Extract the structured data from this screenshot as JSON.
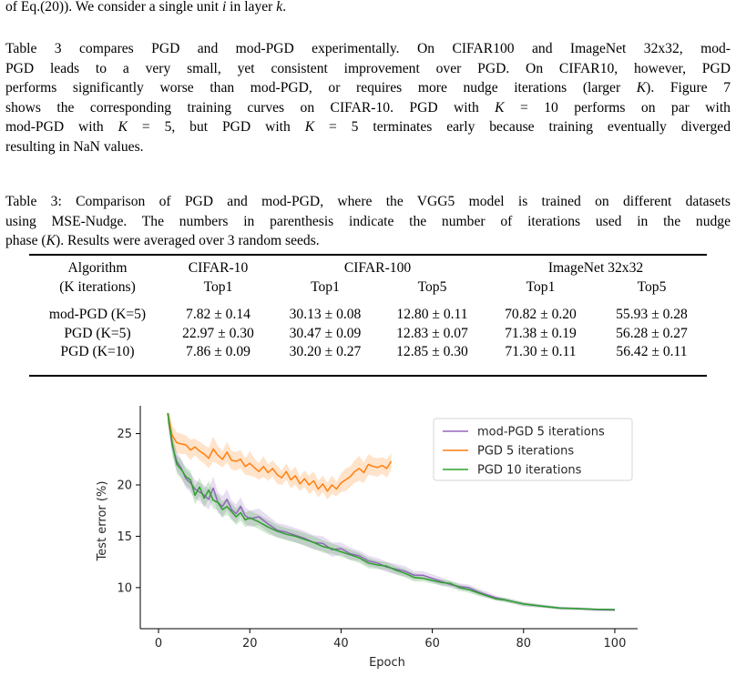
{
  "paper": {
    "intro_lines": [
      "of Eq.(20)). We consider a single unit i in layer k."
    ],
    "para1_lines": [
      "Table 3 compares PGD and mod-PGD experimentally. On CIFAR100 and ImageNet 32x32, mod-",
      "PGD leads to a very small, yet consistent improvement over PGD. On CIFAR10, however, PGD",
      "performs significantly worse than mod-PGD, or requires more nudge iterations (larger K). Figure 7",
      "shows the corresponding training curves on CIFAR-10. PGD with K = 10 performs on par with",
      "mod-PGD with K = 5, but PGD with K = 5 terminates early because training eventually diverged",
      "resulting in NaN values."
    ],
    "caption_lines": [
      "Table 3: Comparison of PGD and mod-PGD, where the VGG5 model is trained on different datasets",
      "using MSE-Nudge. The numbers in parenthesis indicate the number of iterations used in the nudge",
      "phase (K). Results were averaged over 3 random seeds."
    ]
  },
  "table": {
    "header1": [
      "Algorithm",
      "CIFAR-10",
      "CIFAR-100",
      "ImageNet 32x32"
    ],
    "header2": [
      "(K iterations)",
      "Top1",
      "Top1",
      "Top5",
      "Top1",
      "Top5"
    ],
    "rows": [
      [
        "mod-PGD (K=5)",
        "7.82 ± 0.14",
        "30.13 ± 0.08",
        "12.80 ± 0.11",
        "70.82 ± 0.20",
        "55.93 ± 0.28"
      ],
      [
        "PGD (K=5)",
        "22.97 ± 0.30",
        "30.47 ± 0.09",
        "12.83 ± 0.07",
        "71.38 ± 0.19",
        "56.28 ± 0.27"
      ],
      [
        "PGD (K=10)",
        "7.86 ± 0.09",
        "30.20 ± 0.27",
        "12.85 ± 0.30",
        "71.30 ± 0.11",
        "56.42 ± 0.11"
      ]
    ]
  },
  "chart_data": {
    "type": "line",
    "xlabel": "Epoch",
    "ylabel": "Test error (%)",
    "xlim": [
      -4,
      105
    ],
    "ylim": [
      6,
      27
    ],
    "xticks": [
      0,
      20,
      40,
      60,
      80,
      100
    ],
    "yticks": [
      10,
      15,
      20,
      25
    ],
    "legend": "top-right",
    "grid": false,
    "series": [
      {
        "name": "mod-PGD 5 iterations",
        "color": "#9467bd",
        "x": [
          2,
          3,
          4,
          5,
          6,
          7,
          8,
          9,
          10,
          11,
          12,
          13,
          14,
          15,
          16,
          17,
          18,
          19,
          20,
          22,
          24,
          26,
          28,
          30,
          32,
          34,
          36,
          38,
          40,
          42,
          44,
          46,
          48,
          50,
          52,
          54,
          56,
          58,
          60,
          62,
          64,
          66,
          68,
          70,
          72,
          74,
          76,
          78,
          80,
          84,
          88,
          92,
          96,
          100
        ],
        "y": [
          27.0,
          23.8,
          22.3,
          21.6,
          20.6,
          20.2,
          19.6,
          19.3,
          19.0,
          18.6,
          19.7,
          18.3,
          17.9,
          18.6,
          17.6,
          17.2,
          17.9,
          17.0,
          16.7,
          16.9,
          16.2,
          15.6,
          15.4,
          15.1,
          14.8,
          14.4,
          14.3,
          13.7,
          13.8,
          13.3,
          13.1,
          12.6,
          12.4,
          12.0,
          11.8,
          11.6,
          11.2,
          11.2,
          10.9,
          10.6,
          10.3,
          10.1,
          10.0,
          9.6,
          9.3,
          9.0,
          8.8,
          8.6,
          8.4,
          8.2,
          8.0,
          7.95,
          7.85,
          7.82
        ],
        "band": [
          0.9,
          0.9,
          0.9,
          0.9,
          0.9,
          0.9,
          0.9,
          0.9,
          1.0,
          1.0,
          1.1,
          1.0,
          1.0,
          1.0,
          0.9,
          0.9,
          0.9,
          0.8,
          0.8,
          0.8,
          0.8,
          0.7,
          0.7,
          0.7,
          0.7,
          0.7,
          0.7,
          0.7,
          0.6,
          0.6,
          0.5,
          0.5,
          0.5,
          0.5,
          0.5,
          0.5,
          0.4,
          0.4,
          0.4,
          0.4,
          0.3,
          0.3,
          0.3,
          0.3,
          0.3,
          0.2,
          0.2,
          0.2,
          0.2,
          0.15,
          0.15,
          0.15,
          0.14,
          0.14
        ]
      },
      {
        "name": "PGD 5 iterations",
        "color": "#ff7f0e",
        "x": [
          2,
          3,
          4,
          5,
          6,
          7,
          8,
          9,
          10,
          11,
          12,
          13,
          14,
          15,
          16,
          17,
          18,
          19,
          20,
          21,
          22,
          23,
          24,
          25,
          26,
          27,
          28,
          29,
          30,
          31,
          32,
          33,
          34,
          35,
          36,
          37,
          38,
          39,
          40,
          41,
          42,
          43,
          44,
          45,
          46,
          47,
          48,
          49,
          50,
          51
        ],
        "y": [
          27.0,
          24.8,
          24.1,
          24.0,
          23.9,
          23.4,
          23.7,
          23.3,
          23.0,
          22.6,
          23.5,
          22.9,
          22.5,
          23.2,
          22.4,
          22.3,
          22.5,
          21.8,
          22.1,
          21.7,
          21.3,
          21.8,
          21.2,
          21.6,
          21.0,
          20.7,
          21.3,
          20.5,
          20.9,
          20.1,
          20.6,
          20.0,
          20.4,
          19.6,
          20.1,
          19.4,
          20.0,
          19.6,
          20.2,
          20.5,
          20.8,
          21.3,
          21.6,
          21.2,
          22.0,
          21.8,
          21.7,
          21.9,
          21.6,
          22.3
        ],
        "band": [
          1.0,
          1.0,
          1.0,
          1.0,
          0.9,
          1.0,
          0.8,
          0.9,
          0.9,
          1.0,
          1.2,
          0.9,
          0.8,
          1.0,
          0.9,
          0.9,
          0.9,
          0.8,
          1.2,
          0.9,
          0.8,
          1.0,
          0.8,
          0.8,
          0.9,
          0.7,
          0.8,
          0.8,
          0.9,
          0.7,
          0.8,
          0.9,
          0.9,
          0.8,
          0.8,
          0.8,
          0.9,
          0.7,
          0.9,
          1.1,
          1.0,
          1.1,
          1.2,
          1.0,
          1.0,
          0.9,
          0.9,
          0.8,
          0.9,
          0.8
        ]
      },
      {
        "name": "PGD 10 iterations",
        "color": "#2ca02c",
        "x": [
          2,
          3,
          4,
          5,
          6,
          7,
          8,
          9,
          10,
          11,
          12,
          13,
          14,
          15,
          16,
          17,
          18,
          19,
          20,
          22,
          24,
          26,
          28,
          30,
          32,
          34,
          36,
          38,
          40,
          42,
          44,
          46,
          48,
          50,
          52,
          54,
          56,
          58,
          60,
          62,
          64,
          66,
          68,
          70,
          72,
          74,
          76,
          78,
          80,
          84,
          88,
          92,
          96,
          100
        ],
        "y": [
          27.0,
          24.0,
          22.0,
          21.5,
          20.8,
          20.5,
          19.0,
          19.8,
          18.7,
          19.5,
          18.5,
          18.3,
          17.6,
          17.9,
          17.4,
          16.9,
          17.3,
          16.6,
          16.8,
          16.4,
          15.9,
          15.5,
          15.2,
          15.0,
          14.7,
          14.4,
          14.0,
          13.8,
          13.5,
          13.2,
          12.9,
          12.4,
          12.2,
          12.1,
          11.7,
          11.4,
          11.0,
          10.9,
          10.7,
          10.5,
          10.4,
          10.0,
          9.8,
          9.5,
          9.2,
          8.9,
          8.8,
          8.6,
          8.4,
          8.2,
          8.0,
          7.95,
          7.88,
          7.86
        ],
        "band": [
          0.9,
          0.9,
          0.9,
          0.9,
          0.9,
          0.9,
          0.9,
          0.9,
          0.9,
          0.9,
          0.8,
          0.8,
          0.8,
          0.8,
          0.8,
          0.8,
          0.8,
          0.7,
          0.7,
          0.7,
          0.7,
          0.6,
          0.6,
          0.6,
          0.6,
          0.6,
          0.6,
          0.5,
          0.5,
          0.5,
          0.5,
          0.5,
          0.4,
          0.4,
          0.4,
          0.4,
          0.4,
          0.3,
          0.3,
          0.3,
          0.3,
          0.3,
          0.3,
          0.3,
          0.2,
          0.2,
          0.2,
          0.2,
          0.2,
          0.15,
          0.12,
          0.1,
          0.1,
          0.09
        ]
      }
    ]
  }
}
